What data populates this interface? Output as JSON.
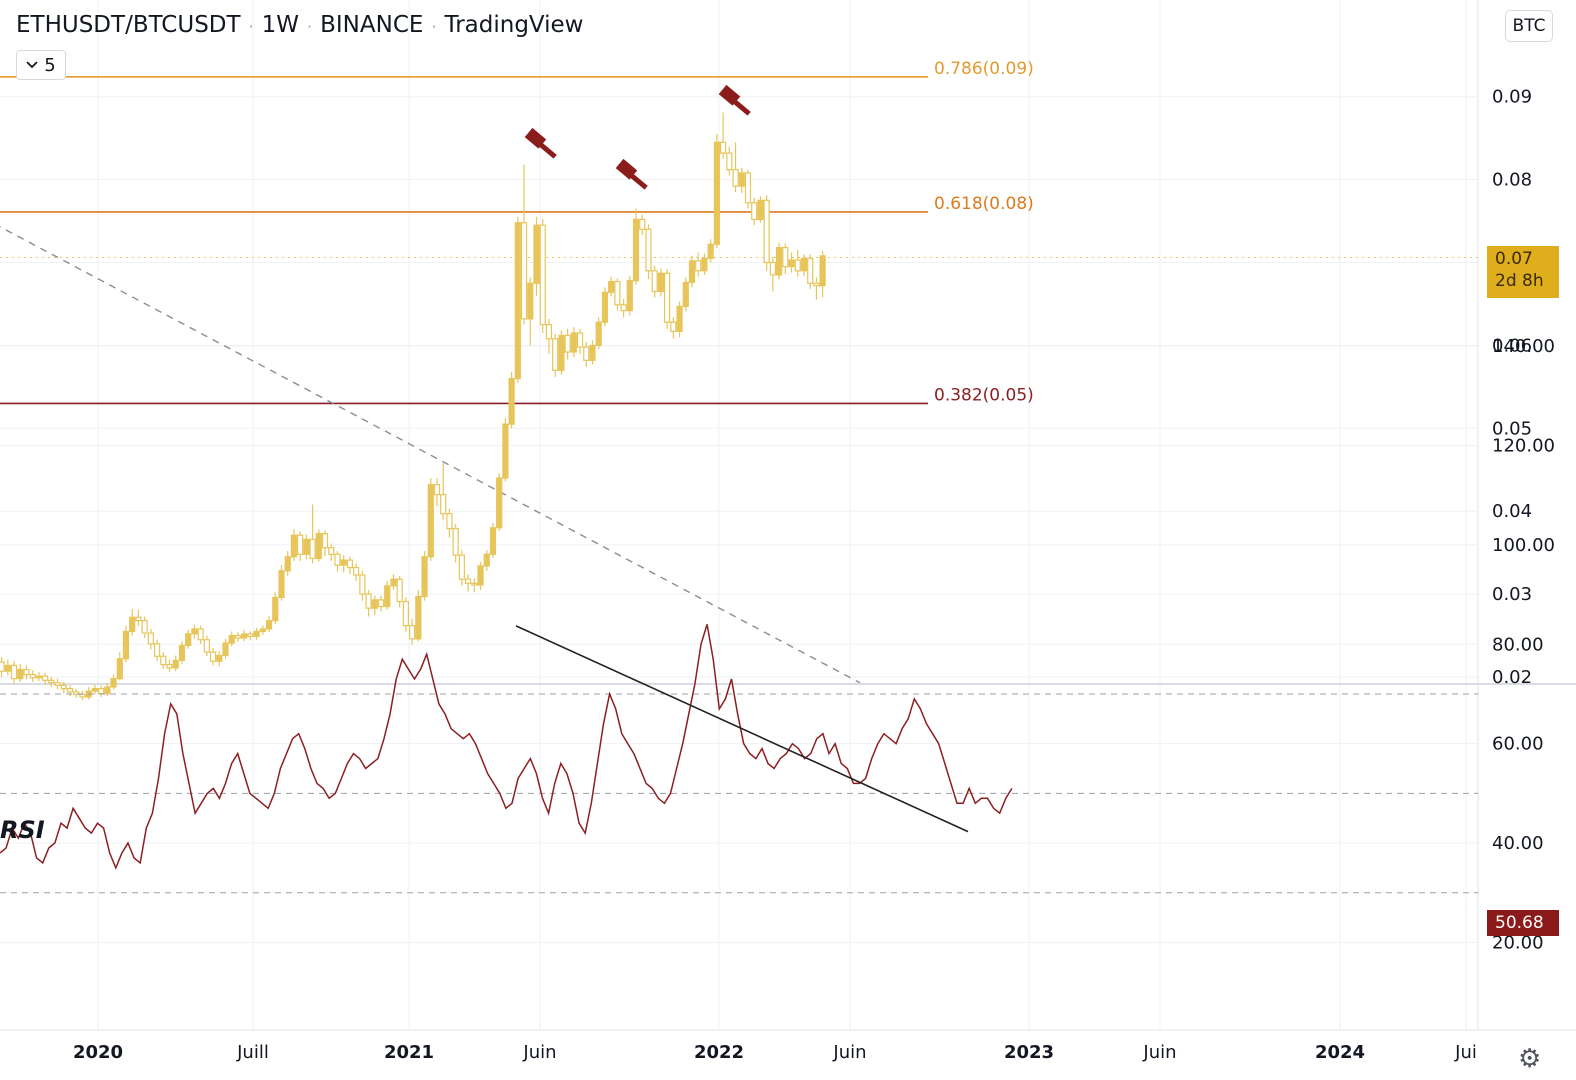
{
  "header": {
    "symbol": "ETHUSDT/BTCUSDT",
    "interval": "1W",
    "exchange": "BINANCE",
    "source": "TradingView"
  },
  "indicator_button": {
    "chevron": "chevron-down-icon",
    "count": "5"
  },
  "currency_button": {
    "label": "BTC"
  },
  "price_tag": {
    "value": "0.07",
    "countdown": "2d 8h"
  },
  "rsi_tag": {
    "value": "50.68"
  },
  "rsi_label": "RSI",
  "colors": {
    "candle": "#e7c55a",
    "fib_786": "#e39a2e",
    "fib_618": "#dc7a1c",
    "fib_382": "#8b1f22",
    "rsi_line": "#8b1f22",
    "gavel": "#8b1c1c"
  },
  "chart_data": {
    "type": "candlestick",
    "price_axis": {
      "ylim": [
        0.02,
        0.1
      ],
      "ticks": [
        "0.09",
        "0.08",
        "0.06",
        "0.05",
        "0.04",
        "0.03",
        "0.02"
      ]
    },
    "time_axis": {
      "labels": [
        "2020",
        "Juill",
        "2021",
        "Juin",
        "2022",
        "Juin",
        "2023",
        "Juin",
        "2024",
        "Jui"
      ],
      "bold": [
        "2020",
        "2021",
        "2022",
        "2023",
        "2024"
      ]
    },
    "fib_levels": [
      {
        "label": "0.786(0.09)",
        "value": 0.0924,
        "color": "#e39a2e"
      },
      {
        "label": "0.618(0.08)",
        "value": 0.0761,
        "color": "#dc7a1c"
      },
      {
        "label": "0.382(0.05)",
        "value": 0.053,
        "color": "#8b1f22"
      }
    ],
    "current_price": 0.0706,
    "trendline": {
      "start": [
        2019.63,
        0.0754
      ],
      "end": [
        2022.45,
        0.0193
      ],
      "style": "dashed"
    },
    "rsi_trendline": {
      "start": [
        2021.35,
        83.7
      ],
      "end": [
        2022.81,
        42.3
      ]
    },
    "candles": [
      [
        2019.65,
        0.0202,
        0.0212,
        0.0222,
        0.0195
      ],
      [
        2019.67,
        0.0212,
        0.0218,
        0.0225,
        0.0204
      ],
      [
        2019.69,
        0.0218,
        0.0207,
        0.0224,
        0.02
      ],
      [
        2019.71,
        0.0207,
        0.0214,
        0.0221,
        0.0202
      ],
      [
        2019.73,
        0.0214,
        0.0198,
        0.0219,
        0.0192
      ],
      [
        2019.75,
        0.0198,
        0.0209,
        0.0216,
        0.0194
      ],
      [
        2019.77,
        0.0209,
        0.0203,
        0.0214,
        0.0197
      ],
      [
        2019.79,
        0.0203,
        0.0199,
        0.0208,
        0.0194
      ],
      [
        2019.81,
        0.0199,
        0.0201,
        0.0206,
        0.0195
      ],
      [
        2019.83,
        0.0201,
        0.0196,
        0.0205,
        0.019
      ],
      [
        2019.85,
        0.0196,
        0.0193,
        0.02,
        0.0188
      ],
      [
        2019.87,
        0.0193,
        0.019,
        0.0198,
        0.0185
      ],
      [
        2019.89,
        0.019,
        0.0186,
        0.0194,
        0.018
      ],
      [
        2019.91,
        0.0186,
        0.0182,
        0.019,
        0.0177
      ],
      [
        2019.93,
        0.0182,
        0.0179,
        0.0186,
        0.0175
      ],
      [
        2019.95,
        0.0179,
        0.0176,
        0.0183,
        0.0172
      ],
      [
        2019.97,
        0.0176,
        0.0183,
        0.0188,
        0.0173
      ],
      [
        2019.99,
        0.0183,
        0.0186,
        0.0191,
        0.0179
      ],
      [
        2020.01,
        0.0186,
        0.018,
        0.019,
        0.0176
      ],
      [
        2020.03,
        0.018,
        0.0188,
        0.0193,
        0.0177
      ],
      [
        2020.05,
        0.0188,
        0.0198,
        0.0203,
        0.0185
      ],
      [
        2020.07,
        0.0198,
        0.0222,
        0.023,
        0.0196
      ],
      [
        2020.09,
        0.0222,
        0.0255,
        0.0262,
        0.0218
      ],
      [
        2020.11,
        0.0255,
        0.0272,
        0.0282,
        0.025
      ],
      [
        2020.13,
        0.0272,
        0.0268,
        0.0281,
        0.0262
      ],
      [
        2020.15,
        0.0268,
        0.0253,
        0.0273,
        0.0247
      ],
      [
        2020.17,
        0.0253,
        0.024,
        0.0258,
        0.0233
      ],
      [
        2020.19,
        0.024,
        0.0225,
        0.0245,
        0.0219
      ],
      [
        2020.21,
        0.0225,
        0.0215,
        0.023,
        0.021
      ],
      [
        2020.23,
        0.0215,
        0.0211,
        0.0221,
        0.0206
      ],
      [
        2020.25,
        0.0211,
        0.022,
        0.0226,
        0.0207
      ],
      [
        2020.27,
        0.022,
        0.0238,
        0.0243,
        0.0216
      ],
      [
        2020.29,
        0.0238,
        0.0252,
        0.0257,
        0.0234
      ],
      [
        2020.31,
        0.0252,
        0.0258,
        0.0263,
        0.0246
      ],
      [
        2020.33,
        0.0258,
        0.0245,
        0.0262,
        0.024
      ],
      [
        2020.35,
        0.0245,
        0.023,
        0.025,
        0.0225
      ],
      [
        2020.37,
        0.023,
        0.0219,
        0.0235,
        0.0214
      ],
      [
        2020.39,
        0.0219,
        0.0226,
        0.0231,
        0.0213
      ],
      [
        2020.41,
        0.0226,
        0.0241,
        0.0246,
        0.0222
      ],
      [
        2020.43,
        0.0241,
        0.025,
        0.0255,
        0.0237
      ],
      [
        2020.45,
        0.025,
        0.0247,
        0.0254,
        0.0242
      ],
      [
        2020.47,
        0.0247,
        0.0252,
        0.0257,
        0.0243
      ],
      [
        2020.49,
        0.0252,
        0.0249,
        0.0255,
        0.0244
      ],
      [
        2020.51,
        0.0249,
        0.0255,
        0.0259,
        0.0245
      ],
      [
        2020.53,
        0.0255,
        0.0258,
        0.0262,
        0.0251
      ],
      [
        2020.55,
        0.0258,
        0.0268,
        0.0273,
        0.0254
      ],
      [
        2020.57,
        0.0268,
        0.0296,
        0.0302,
        0.0264
      ],
      [
        2020.59,
        0.0296,
        0.0328,
        0.0335,
        0.0292
      ],
      [
        2020.61,
        0.0328,
        0.0345,
        0.0352,
        0.0322
      ],
      [
        2020.63,
        0.0345,
        0.0371,
        0.0378,
        0.034
      ],
      [
        2020.65,
        0.0371,
        0.0348,
        0.0376,
        0.034
      ],
      [
        2020.67,
        0.0348,
        0.0366,
        0.0372,
        0.0342
      ],
      [
        2020.69,
        0.0366,
        0.0343,
        0.0408,
        0.0337
      ],
      [
        2020.71,
        0.0343,
        0.0373,
        0.0378,
        0.0339
      ],
      [
        2020.73,
        0.0373,
        0.0356,
        0.0377,
        0.0346
      ],
      [
        2020.75,
        0.0356,
        0.0348,
        0.0361,
        0.034
      ],
      [
        2020.77,
        0.0348,
        0.0335,
        0.0352,
        0.0327
      ],
      [
        2020.79,
        0.0335,
        0.0341,
        0.0347,
        0.0326
      ],
      [
        2020.81,
        0.0341,
        0.0332,
        0.0345,
        0.0324
      ],
      [
        2020.83,
        0.0332,
        0.0323,
        0.0337,
        0.0316
      ],
      [
        2020.85,
        0.0323,
        0.03,
        0.0328,
        0.0292
      ],
      [
        2020.87,
        0.03,
        0.0283,
        0.0305,
        0.0273
      ],
      [
        2020.89,
        0.0283,
        0.0293,
        0.0298,
        0.0275
      ],
      [
        2020.91,
        0.0293,
        0.0285,
        0.0298,
        0.0279
      ],
      [
        2020.93,
        0.0285,
        0.031,
        0.0316,
        0.0281
      ],
      [
        2020.95,
        0.031,
        0.0318,
        0.0324,
        0.0305
      ],
      [
        2020.97,
        0.0318,
        0.0291,
        0.0322,
        0.0284
      ],
      [
        2020.99,
        0.0291,
        0.0262,
        0.0296,
        0.0255
      ],
      [
        2021.01,
        0.0262,
        0.0246,
        0.027,
        0.0239
      ],
      [
        2021.03,
        0.0246,
        0.0297,
        0.0305,
        0.0243
      ],
      [
        2021.05,
        0.0297,
        0.0345,
        0.0352,
        0.0292
      ],
      [
        2021.07,
        0.0345,
        0.0432,
        0.044,
        0.034
      ],
      [
        2021.09,
        0.0432,
        0.042,
        0.044,
        0.0406
      ],
      [
        2021.11,
        0.042,
        0.0397,
        0.0458,
        0.039
      ],
      [
        2021.13,
        0.0397,
        0.0379,
        0.0403,
        0.0368
      ],
      [
        2021.15,
        0.0379,
        0.0347,
        0.0385,
        0.0338
      ],
      [
        2021.17,
        0.0347,
        0.0318,
        0.0353,
        0.031
      ],
      [
        2021.19,
        0.0318,
        0.0313,
        0.0324,
        0.0303
      ],
      [
        2021.21,
        0.0313,
        0.0311,
        0.0319,
        0.0302
      ],
      [
        2021.23,
        0.0311,
        0.0334,
        0.0339,
        0.0305
      ],
      [
        2021.25,
        0.0334,
        0.0348,
        0.0353,
        0.0328
      ],
      [
        2021.27,
        0.0348,
        0.038,
        0.0386,
        0.0344
      ],
      [
        2021.29,
        0.038,
        0.044,
        0.0446,
        0.0376
      ],
      [
        2021.31,
        0.044,
        0.0505,
        0.0512,
        0.0436
      ],
      [
        2021.33,
        0.0505,
        0.056,
        0.0568,
        0.05
      ],
      [
        2021.35,
        0.056,
        0.0748,
        0.0755,
        0.0555
      ],
      [
        2021.37,
        0.0748,
        0.0632,
        0.0818,
        0.0625
      ],
      [
        2021.39,
        0.0632,
        0.0675,
        0.0682,
        0.06
      ],
      [
        2021.41,
        0.0675,
        0.0745,
        0.0755,
        0.066
      ],
      [
        2021.43,
        0.0745,
        0.0625,
        0.0752,
        0.0615
      ],
      [
        2021.45,
        0.0625,
        0.0608,
        0.0632,
        0.059
      ],
      [
        2021.47,
        0.0608,
        0.057,
        0.0614,
        0.0562
      ],
      [
        2021.49,
        0.057,
        0.0612,
        0.0618,
        0.0565
      ],
      [
        2021.51,
        0.0612,
        0.0592,
        0.062,
        0.0583
      ],
      [
        2021.53,
        0.0592,
        0.0615,
        0.0622,
        0.0586
      ],
      [
        2021.55,
        0.0615,
        0.0598,
        0.062,
        0.059
      ],
      [
        2021.57,
        0.0598,
        0.0582,
        0.0604,
        0.0574
      ],
      [
        2021.59,
        0.0582,
        0.06,
        0.0606,
        0.0577
      ],
      [
        2021.61,
        0.06,
        0.0628,
        0.0634,
        0.0595
      ],
      [
        2021.63,
        0.0628,
        0.0664,
        0.067,
        0.0623
      ],
      [
        2021.65,
        0.0664,
        0.0677,
        0.0683,
        0.0659
      ],
      [
        2021.67,
        0.0677,
        0.0649,
        0.0681,
        0.0642
      ],
      [
        2021.69,
        0.0649,
        0.0642,
        0.0656,
        0.0634
      ],
      [
        2021.71,
        0.0642,
        0.0678,
        0.0684,
        0.0636
      ],
      [
        2021.73,
        0.0678,
        0.0752,
        0.0765,
        0.0673
      ],
      [
        2021.75,
        0.0752,
        0.074,
        0.0758,
        0.0733
      ],
      [
        2021.77,
        0.074,
        0.069,
        0.0746,
        0.068
      ],
      [
        2021.79,
        0.069,
        0.0665,
        0.0696,
        0.0658
      ],
      [
        2021.81,
        0.0665,
        0.0687,
        0.0693,
        0.0659
      ],
      [
        2021.83,
        0.0687,
        0.0628,
        0.0692,
        0.062
      ],
      [
        2021.85,
        0.0628,
        0.0617,
        0.0634,
        0.0608
      ],
      [
        2021.87,
        0.0617,
        0.0647,
        0.0653,
        0.061
      ],
      [
        2021.89,
        0.0647,
        0.0676,
        0.0682,
        0.0641
      ],
      [
        2021.91,
        0.0676,
        0.0702,
        0.0708,
        0.067
      ],
      [
        2021.93,
        0.0702,
        0.069,
        0.0712,
        0.0683
      ],
      [
        2021.95,
        0.069,
        0.0705,
        0.0711,
        0.0685
      ],
      [
        2021.97,
        0.0705,
        0.0722,
        0.0728,
        0.07
      ],
      [
        2021.99,
        0.0722,
        0.0845,
        0.0855,
        0.0717
      ],
      [
        2022.01,
        0.0845,
        0.0832,
        0.0881,
        0.0825
      ],
      [
        2022.03,
        0.0832,
        0.0812,
        0.084,
        0.0805
      ],
      [
        2022.05,
        0.0812,
        0.0792,
        0.0845,
        0.0785
      ],
      [
        2022.07,
        0.0792,
        0.0808,
        0.0814,
        0.0784
      ],
      [
        2022.09,
        0.0808,
        0.0772,
        0.0812,
        0.0765
      ],
      [
        2022.11,
        0.0772,
        0.0752,
        0.0778,
        0.0745
      ],
      [
        2022.13,
        0.0752,
        0.0775,
        0.078,
        0.0748
      ],
      [
        2022.15,
        0.0775,
        0.07,
        0.0781,
        0.069
      ],
      [
        2022.17,
        0.07,
        0.0685,
        0.0707,
        0.0665
      ],
      [
        2022.19,
        0.0685,
        0.0718,
        0.0724,
        0.068
      ],
      [
        2022.21,
        0.0718,
        0.0695,
        0.0723,
        0.0686
      ],
      [
        2022.23,
        0.0695,
        0.0703,
        0.0712,
        0.0688
      ],
      [
        2022.25,
        0.0703,
        0.069,
        0.0715,
        0.0683
      ],
      [
        2022.27,
        0.069,
        0.0705,
        0.071,
        0.0684
      ],
      [
        2022.29,
        0.0705,
        0.0675,
        0.071,
        0.0668
      ],
      [
        2022.31,
        0.0675,
        0.0672,
        0.0682,
        0.0655
      ],
      [
        2022.33,
        0.0672,
        0.0708,
        0.0714,
        0.0658
      ]
    ],
    "rsi": {
      "ylim": [
        5,
        148
      ],
      "ticks": [
        "140.00",
        "120.00",
        "100.00",
        "80.00",
        "60.00",
        "40.00",
        "20.00"
      ],
      "bands": [
        70,
        50,
        30
      ],
      "x_start": 2019.63,
      "x_step": 0.0196,
      "values": [
        38,
        39,
        43,
        41,
        44,
        42,
        37,
        36,
        39,
        40,
        44,
        43,
        47,
        45,
        43,
        42,
        44,
        43,
        38,
        35,
        38,
        40,
        37,
        36,
        43,
        46,
        53,
        62,
        68,
        66,
        58,
        52,
        46,
        48,
        50,
        51,
        49,
        52,
        56,
        58,
        54,
        50,
        49,
        48,
        47,
        50,
        55,
        58,
        61,
        62,
        59,
        55,
        52,
        51,
        49,
        50,
        53,
        56,
        58,
        57,
        55,
        56,
        57,
        61,
        66,
        73,
        77,
        75,
        73,
        75,
        78,
        73,
        68,
        66,
        63,
        62,
        61,
        62,
        60,
        57,
        54,
        52,
        50,
        47,
        48,
        53,
        55,
        57,
        54,
        49,
        46,
        52,
        56,
        54,
        50,
        44,
        42,
        48,
        56,
        64,
        70,
        67,
        62,
        60,
        58,
        55,
        52,
        51,
        49,
        48,
        50,
        55,
        60,
        66,
        72,
        80,
        84,
        77,
        67,
        69,
        73,
        66,
        60,
        58,
        57,
        59,
        56,
        55,
        57,
        58,
        60,
        59,
        57,
        58,
        61,
        62,
        58,
        60,
        56,
        55,
        52,
        52,
        53,
        57,
        60,
        62,
        61,
        60,
        63,
        65,
        69,
        67,
        64,
        62,
        60,
        56,
        52,
        48,
        48,
        51,
        48,
        49,
        49,
        47,
        46,
        49,
        51
      ]
    }
  }
}
